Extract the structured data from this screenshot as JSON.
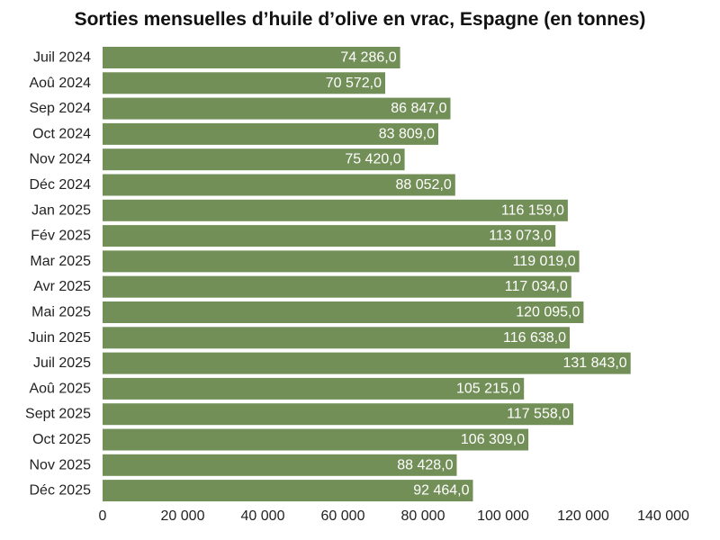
{
  "chart_data": {
    "type": "bar",
    "orientation": "horizontal",
    "title": "Sorties mensuelles d’huile d’olive en vrac, Espagne (en tonnes)",
    "xlabel": "",
    "ylabel": "",
    "categories": [
      "Juil 2024",
      "Aoû 2024",
      "Sep 2024",
      "Oct 2024",
      "Nov 2024",
      "Déc 2024",
      "Jan 2025",
      "Fév 2025",
      "Mar 2025",
      "Avr 2025",
      "Mai 2025",
      "Juin 2025",
      "Juil 2025",
      "Aoû 2025",
      "Sept 2025",
      "Oct 2025",
      "Nov 2025",
      "Déc 2025"
    ],
    "values": [
      74286.0,
      70572.0,
      86847.0,
      83809.0,
      75420.0,
      88052.0,
      116159.0,
      113073.0,
      119019.0,
      117034.0,
      120095.0,
      116638.0,
      131843.0,
      105215.0,
      117558.0,
      106309.0,
      88428.0,
      92464.0
    ],
    "value_labels": [
      "74 286,0",
      "70 572,0",
      "86 847,0",
      "83 809,0",
      "75 420,0",
      "88 052,0",
      "116 159,0",
      "113 073,0",
      "119 019,0",
      "117 034,0",
      "120 095,0",
      "116 638,0",
      "131 843,0",
      "105 215,0",
      "117 558,0",
      "106 309,0",
      "88 428,0",
      "92 464,0"
    ],
    "xlim": [
      0,
      140000
    ],
    "x_ticks": [
      0,
      20000,
      40000,
      60000,
      80000,
      100000,
      120000,
      140000
    ],
    "x_tick_labels": [
      "0",
      "20 000",
      "40 000",
      "60 000",
      "80 000",
      "100 000",
      "120 000",
      "140 000"
    ],
    "grid": false,
    "legend": "none",
    "bar_color": "#738f58",
    "label_color": "#ffffff"
  }
}
